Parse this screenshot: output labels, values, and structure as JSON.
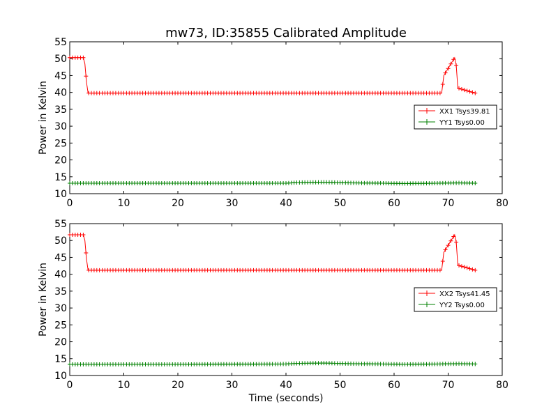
{
  "title": "mw73, ID:35855 Calibrated Amplitude",
  "xlabel": "Time (seconds)",
  "colors": {
    "red": "#ff0000",
    "green": "#008000"
  },
  "chart_data": [
    {
      "type": "line",
      "title": "mw73, ID:35855 Calibrated Amplitude",
      "xlabel": "",
      "ylabel": "Power in Kelvin",
      "xlim": [
        0,
        80
      ],
      "ylim": [
        10,
        55
      ],
      "xticks": [
        "0",
        "10",
        "20",
        "30",
        "40",
        "50",
        "60",
        "70",
        "80"
      ],
      "yticks": [
        "10",
        "15",
        "20",
        "25",
        "30",
        "35",
        "40",
        "45",
        "50",
        "55"
      ],
      "legend": "center-right",
      "grid": false,
      "series": [
        {
          "name": "XX1 Tsys39.81",
          "color": "#ff0000",
          "marker": "+",
          "x": [
            0,
            2.5,
            2.8,
            3.1,
            3.4,
            68.8,
            69.2,
            71.2,
            71.5,
            71.8,
            75
          ],
          "y": [
            50.3,
            50.3,
            48.5,
            43,
            39.8,
            39.8,
            45,
            50.3,
            48,
            41.3,
            39.8
          ]
        },
        {
          "name": "YY1 Tsys0.00",
          "color": "#008000",
          "marker": "+",
          "x": [
            0,
            20,
            40,
            42,
            47,
            52,
            58,
            62,
            68,
            72,
            75
          ],
          "y": [
            13.1,
            13.1,
            13.1,
            13.3,
            13.4,
            13.2,
            13.1,
            13.0,
            13.1,
            13.2,
            13.1
          ]
        }
      ]
    },
    {
      "type": "line",
      "xlabel": "Time (seconds)",
      "ylabel": "Power in Kelvin",
      "xlim": [
        0,
        80
      ],
      "ylim": [
        10,
        55
      ],
      "xticks": [
        "0",
        "10",
        "20",
        "30",
        "40",
        "50",
        "60",
        "70",
        "80"
      ],
      "yticks": [
        "10",
        "15",
        "20",
        "25",
        "30",
        "35",
        "40",
        "45",
        "50",
        "55"
      ],
      "legend": "center-right",
      "grid": false,
      "series": [
        {
          "name": "XX2 Tsys41.45",
          "color": "#ff0000",
          "marker": "+",
          "x": [
            0,
            2.5,
            2.8,
            3.1,
            3.4,
            68.8,
            69.2,
            71.2,
            71.5,
            71.8,
            75
          ],
          "y": [
            51.7,
            51.7,
            50,
            44.5,
            41.2,
            41.2,
            46.5,
            51.7,
            49.5,
            42.7,
            41.2
          ]
        },
        {
          "name": "YY2 Tsys0.00",
          "color": "#008000",
          "marker": "+",
          "x": [
            0,
            20,
            40,
            42,
            47,
            52,
            58,
            62,
            68,
            72,
            75
          ],
          "y": [
            13.3,
            13.3,
            13.4,
            13.6,
            13.7,
            13.5,
            13.4,
            13.3,
            13.4,
            13.5,
            13.4
          ]
        }
      ]
    }
  ]
}
